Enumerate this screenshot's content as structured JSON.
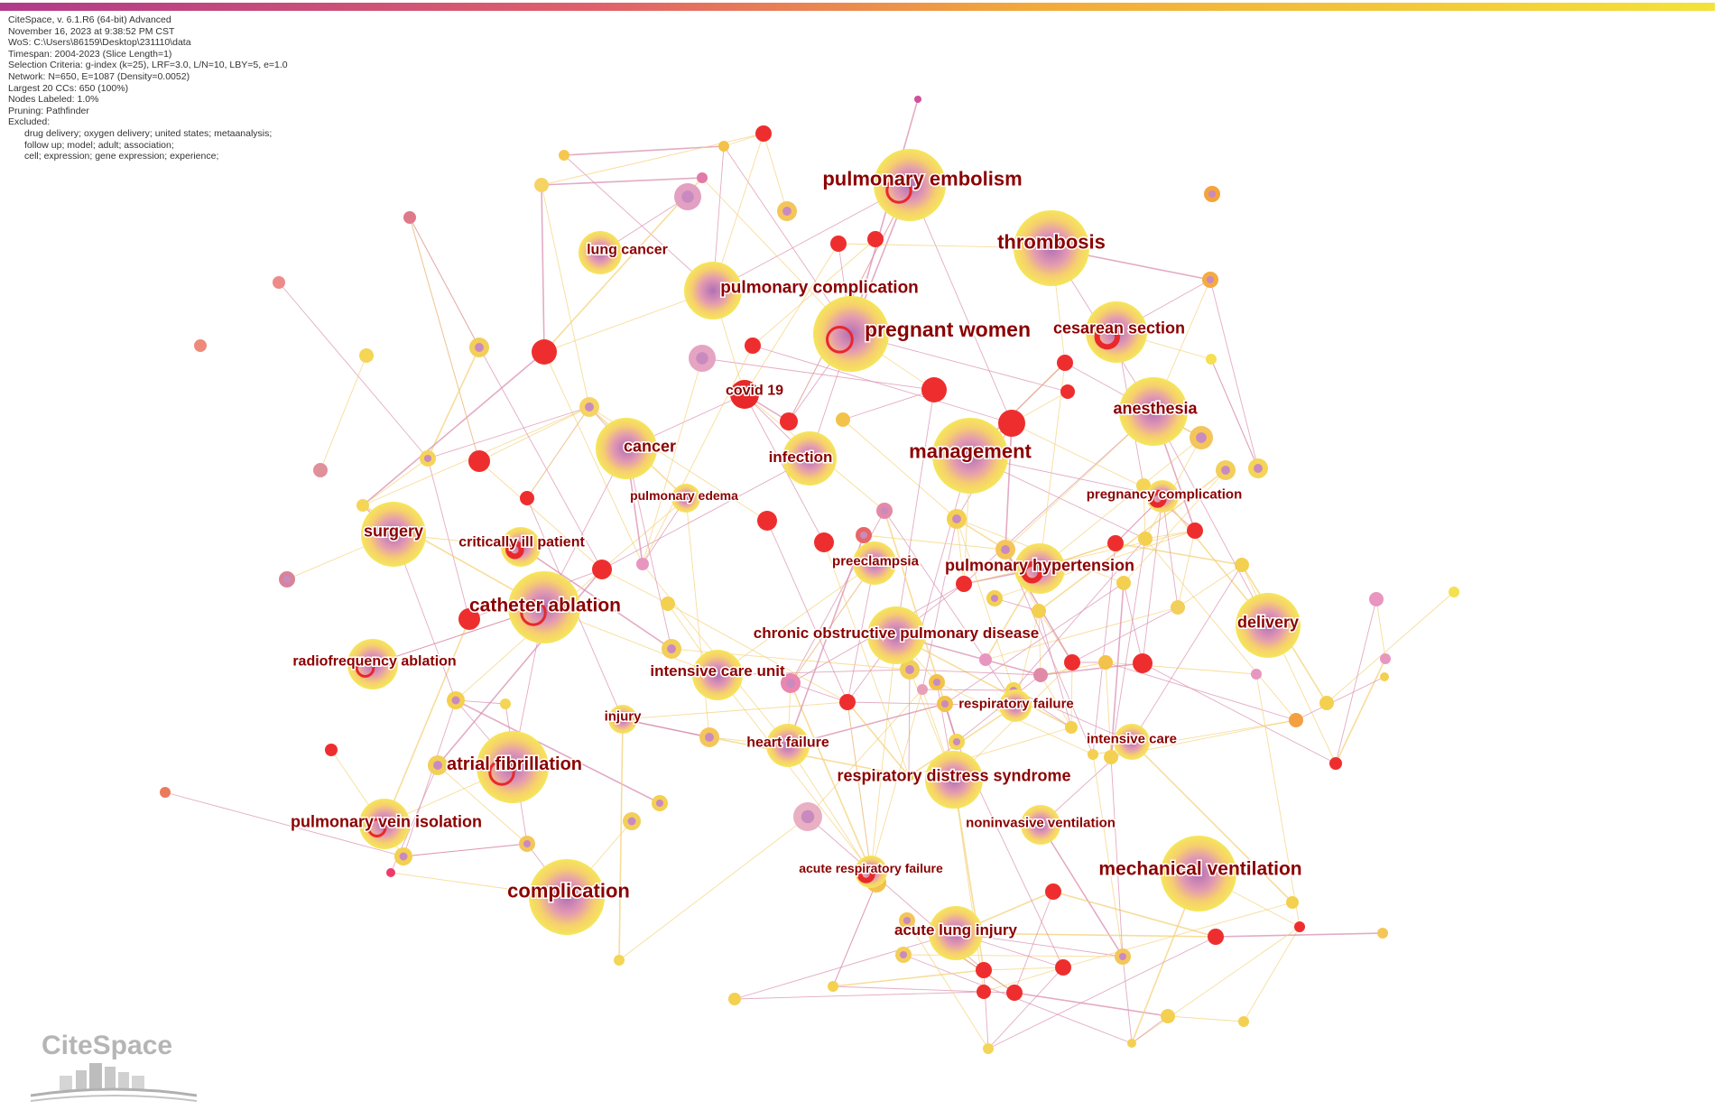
{
  "header_info": {
    "lines": [
      "CiteSpace, v. 6.1.R6 (64-bit) Advanced",
      "November 16, 2023 at 9:38:52 PM CST",
      "WoS: C:\\Users\\86159\\Desktop\\231110\\data",
      "Timespan: 2004-2023 (Slice Length=1)",
      "Selection Criteria: g-index (k=25), LRF=3.0, L/N=10, LBY=5, e=1.0",
      "Network: N=650, E=1087 (Density=0.0052)",
      "Largest 20 CCs: 650 (100%)",
      "Nodes Labeled: 1.0%",
      "Pruning: Pathfinder",
      "Excluded:"
    ],
    "excluded_lines": [
      "drug delivery; oxygen delivery; united states; metaanalysis;",
      "follow up; model; adult; association;",
      "cell; expression; gene expression; experience;"
    ]
  },
  "colors": {
    "timeline_start": "#b03a8a",
    "timeline_mid": "#f2a93b",
    "timeline_end": "#f3e23a",
    "halo_outer": "#f5e65a",
    "halo_inner": "#b06fb8",
    "burst": "#e8282a",
    "label": "#8b0000",
    "edge_pink": "#d98fb0",
    "edge_yellow": "#f4d27a"
  },
  "keywords": [
    {
      "label": "pulmonary embolism",
      "size": "large"
    },
    {
      "label": "thrombosis",
      "size": "large"
    },
    {
      "label": "lung cancer",
      "size": "small"
    },
    {
      "label": "pulmonary complication",
      "size": "medium"
    },
    {
      "label": "pregnant women",
      "size": "large"
    },
    {
      "label": "cesarean section",
      "size": "medium"
    },
    {
      "label": "covid 19",
      "size": "small"
    },
    {
      "label": "anesthesia",
      "size": "medium"
    },
    {
      "label": "cancer",
      "size": "medium"
    },
    {
      "label": "infection",
      "size": "medium"
    },
    {
      "label": "management",
      "size": "large"
    },
    {
      "label": "pulmonary edema",
      "size": "small"
    },
    {
      "label": "pregnancy complication",
      "size": "small"
    },
    {
      "label": "surgery",
      "size": "medium"
    },
    {
      "label": "critically ill patient",
      "size": "small"
    },
    {
      "label": "preeclampsia",
      "size": "small"
    },
    {
      "label": "pulmonary hypertension",
      "size": "medium"
    },
    {
      "label": "catheter ablation",
      "size": "large"
    },
    {
      "label": "chronic obstructive pulmonary disease",
      "size": "medium"
    },
    {
      "label": "delivery",
      "size": "medium"
    },
    {
      "label": "radiofrequency ablation",
      "size": "small"
    },
    {
      "label": "intensive care unit",
      "size": "medium"
    },
    {
      "label": "injury",
      "size": "small"
    },
    {
      "label": "respiratory failure",
      "size": "small"
    },
    {
      "label": "heart failure",
      "size": "small"
    },
    {
      "label": "intensive care",
      "size": "small"
    },
    {
      "label": "atrial fibrillation",
      "size": "large"
    },
    {
      "label": "respiratory distress syndrome",
      "size": "medium"
    },
    {
      "label": "noninvasive ventilation",
      "size": "small"
    },
    {
      "label": "pulmonary vein isolation",
      "size": "medium"
    },
    {
      "label": "acute respiratory failure",
      "size": "small"
    },
    {
      "label": "mechanical ventilation",
      "size": "large"
    },
    {
      "label": "complication",
      "size": "large"
    },
    {
      "label": "acute lung injury",
      "size": "medium"
    }
  ],
  "logo": {
    "text": "CiteSpace"
  }
}
